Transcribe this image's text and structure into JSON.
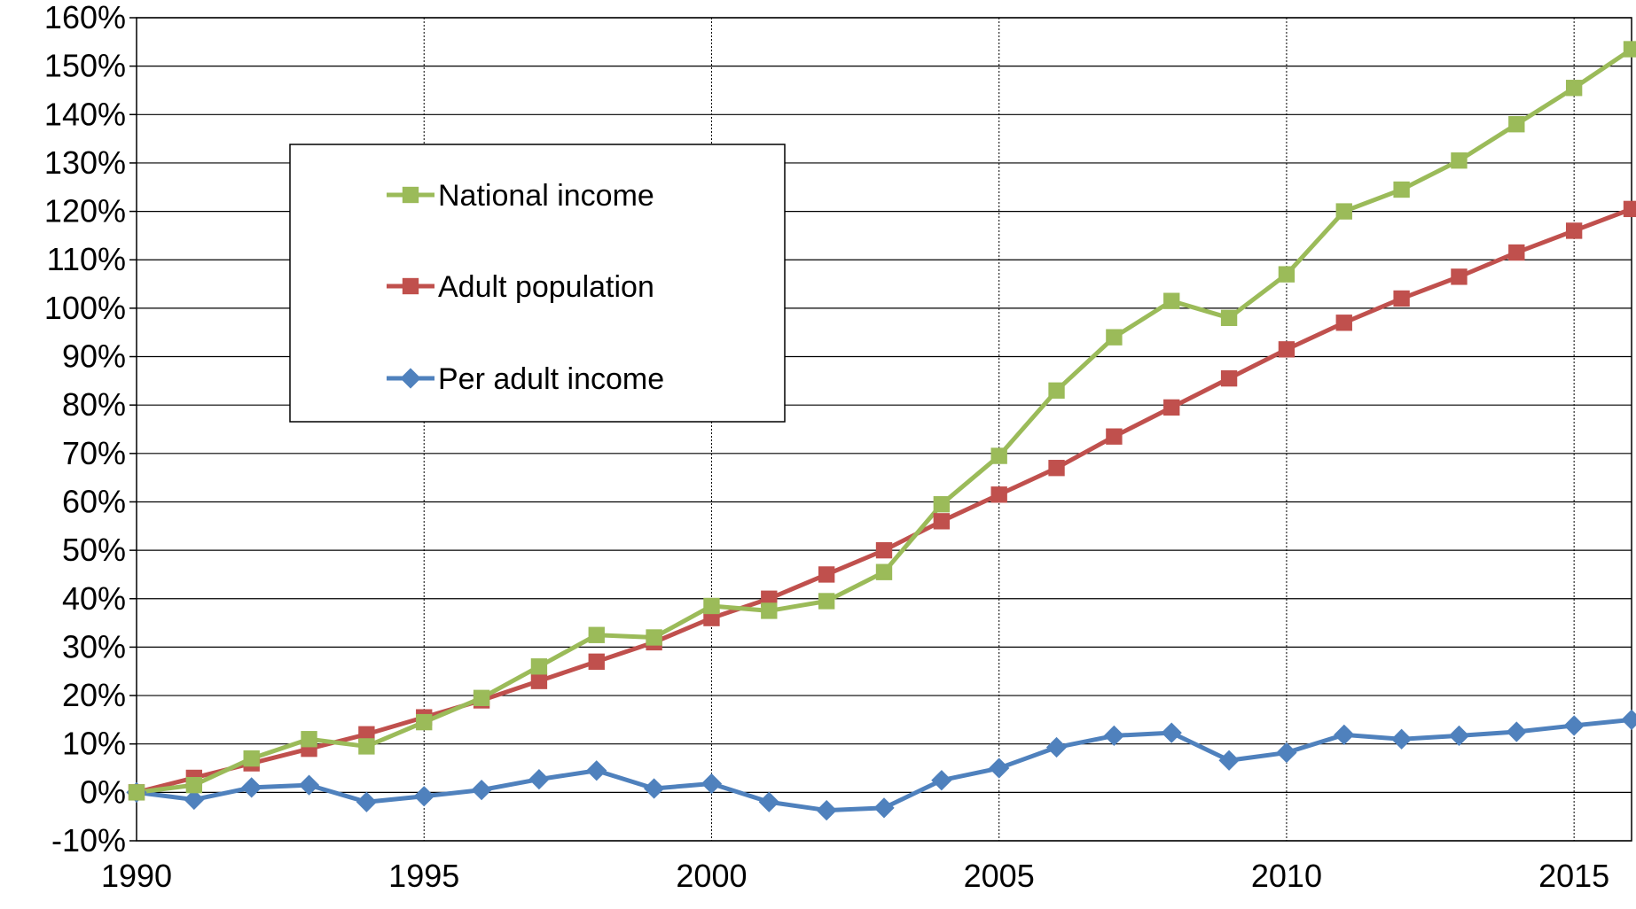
{
  "chart_data": {
    "type": "line",
    "title": "",
    "xlabel": "",
    "ylabel": "",
    "xlim": [
      1990,
      2016
    ],
    "ylim": [
      -10,
      160
    ],
    "grid": true,
    "legend_position": "upper-left",
    "x_ticks": [
      {
        "value": 1990,
        "label": "1990"
      },
      {
        "value": 1995,
        "label": "1995"
      },
      {
        "value": 2000,
        "label": "2000"
      },
      {
        "value": 2005,
        "label": "2005"
      },
      {
        "value": 2010,
        "label": "2010"
      },
      {
        "value": 2015,
        "label": "2015"
      }
    ],
    "y_ticks": [
      {
        "value": 160,
        "label": "160%"
      },
      {
        "value": 150,
        "label": "150%"
      },
      {
        "value": 140,
        "label": "140%"
      },
      {
        "value": 130,
        "label": "130%"
      },
      {
        "value": 120,
        "label": "120%"
      },
      {
        "value": 110,
        "label": "110%"
      },
      {
        "value": 100,
        "label": "100%"
      },
      {
        "value": 90,
        "label": "90%"
      },
      {
        "value": 80,
        "label": "80%"
      },
      {
        "value": 70,
        "label": "70%"
      },
      {
        "value": 60,
        "label": "60%"
      },
      {
        "value": 50,
        "label": "50%"
      },
      {
        "value": 40,
        "label": "40%"
      },
      {
        "value": 30,
        "label": "30%"
      },
      {
        "value": 20,
        "label": "20%"
      },
      {
        "value": 10,
        "label": "10%"
      },
      {
        "value": 0,
        "label": "0%"
      },
      {
        "value": -10,
        "label": "-10%"
      }
    ],
    "x": [
      1990,
      1991,
      1992,
      1993,
      1994,
      1995,
      1996,
      1997,
      1998,
      1999,
      2000,
      2001,
      2002,
      2003,
      2004,
      2005,
      2006,
      2007,
      2008,
      2009,
      2010,
      2011,
      2012,
      2013,
      2014,
      2015,
      2016
    ],
    "series": [
      {
        "name": "National income",
        "color": "#9BBB59",
        "marker": "square",
        "values": [
          0,
          1.5,
          7,
          11,
          9.5,
          14.5,
          19.5,
          26,
          32.5,
          32,
          38.5,
          37.5,
          39.5,
          45.5,
          59.5,
          69.5,
          83,
          94,
          101.5,
          98,
          107,
          120,
          124.5,
          130.5,
          138,
          145.5,
          153.5
        ]
      },
      {
        "name": "Adult population",
        "color": "#C0504D",
        "marker": "square",
        "values": [
          0,
          3,
          6,
          9,
          12,
          15.5,
          19,
          23,
          27,
          31,
          36,
          40,
          45,
          50,
          56,
          61.5,
          67,
          73.5,
          79.5,
          85.5,
          91.5,
          97,
          102,
          106.5,
          111.5,
          116,
          120.5
        ]
      },
      {
        "name": "Per adult income",
        "color": "#4F81BD",
        "marker": "diamond",
        "values": [
          0,
          -1.5,
          1,
          1.5,
          -2,
          -0.8,
          0.5,
          2.7,
          4.5,
          0.8,
          1.8,
          -2,
          -3.7,
          -3.2,
          2.5,
          5,
          9.3,
          11.7,
          12.3,
          6.6,
          8.2,
          11.9,
          11,
          11.7,
          12.5,
          13.8,
          15
        ]
      }
    ]
  }
}
